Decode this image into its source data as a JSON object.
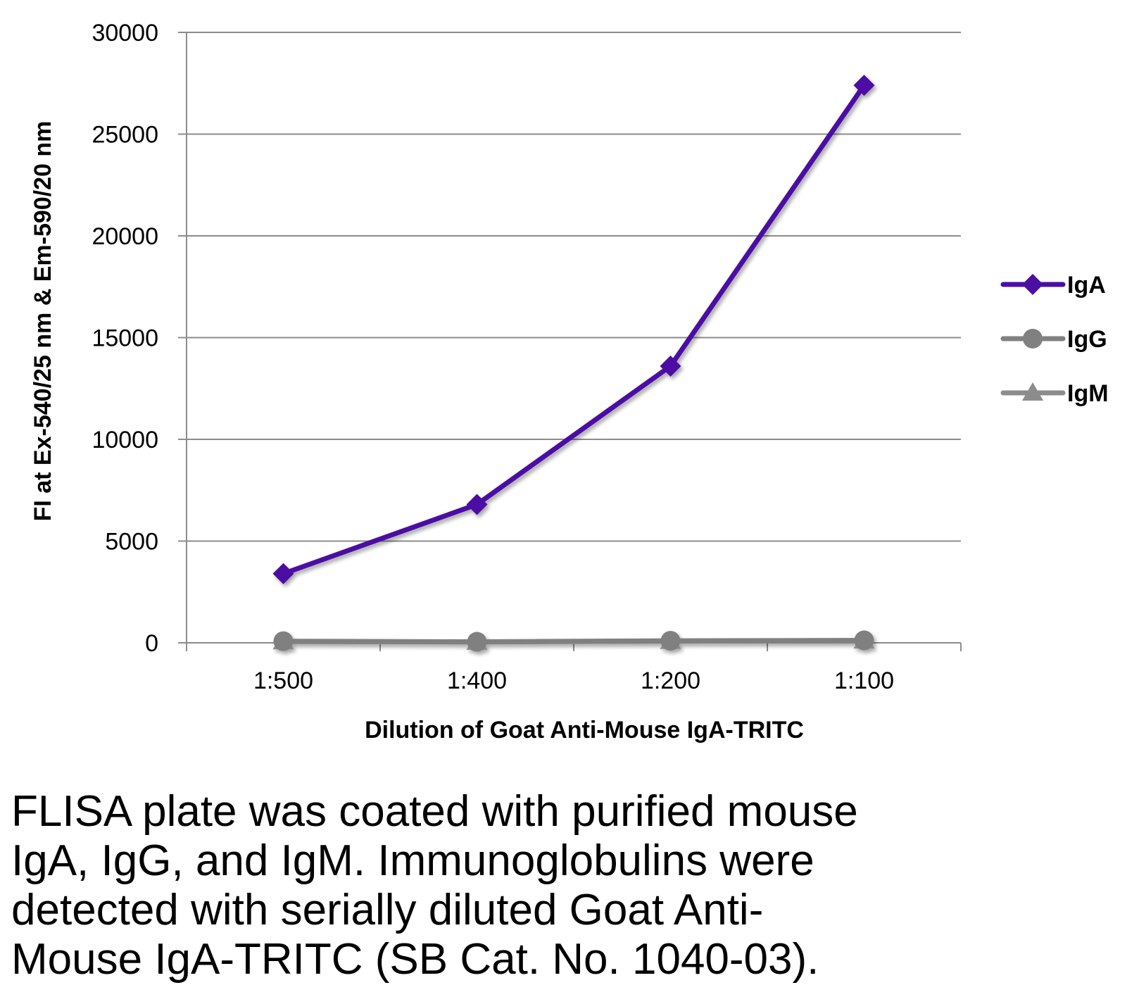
{
  "chart_data": {
    "type": "line",
    "title": "",
    "xlabel": "Dilution of Goat Anti-Mouse IgA-TRITC",
    "ylabel": "FI at Ex-540/25 nm & Em-590/20 nm",
    "categories": [
      "1:500",
      "1:400",
      "1:200",
      "1:100"
    ],
    "ylim": [
      0,
      30000
    ],
    "yticks": [
      "0",
      "5000",
      "10000",
      "15000",
      "20000",
      "25000",
      "30000"
    ],
    "grid": true,
    "legend_position": "right",
    "series": [
      {
        "name": "IgA",
        "values": [
          3400,
          6800,
          13600,
          27400
        ],
        "color": "#4b0fa3",
        "marker": "diamond"
      },
      {
        "name": "IgG",
        "values": [
          80,
          50,
          100,
          120
        ],
        "color": "#808080",
        "marker": "circle"
      },
      {
        "name": "IgM",
        "values": [
          60,
          40,
          80,
          100
        ],
        "color": "#8c8c8c",
        "marker": "triangle"
      }
    ]
  },
  "caption": {
    "lines": [
      "FLISA plate was coated with purified mouse",
      "IgA, IgG, and IgM.  Immunoglobulins were",
      "detected with serially diluted Goat Anti-",
      "Mouse IgA-TRITC (SB Cat. No. 1040-03)."
    ]
  }
}
